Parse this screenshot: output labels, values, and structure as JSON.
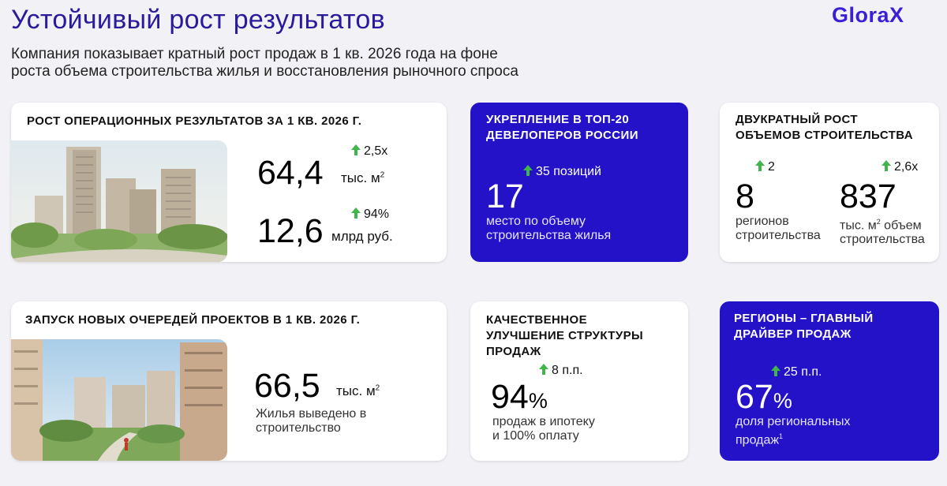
{
  "header": {
    "title": "Устойчивый рост результатов",
    "logo": "GloraX",
    "subtitle_line1": "Компания показывает кратный рост продаж в 1 кв. 2026 года на фоне",
    "subtitle_line2": "роста объема строительства жилья и восстановления рыночного спроса"
  },
  "card1": {
    "title": "РОСТ ОПЕРАЦИОННЫХ РЕЗУЛЬТАТОВ ЗА 1 КВ. 2026 Г.",
    "m1_delta": "2,5х",
    "m1_value": "64,4",
    "m1_unit": "тыс. м",
    "m1_unit_sup": "2",
    "m2_delta": "94%",
    "m2_value": "12,6",
    "m2_unit": "млрд руб."
  },
  "card2": {
    "title_line1": "УКРЕПЛЕНИЕ В ТОП-20",
    "title_line2": "ДЕВЕЛОПЕРОВ РОССИИ",
    "delta": "35 позиций",
    "value": "17",
    "desc_line1": "место по объему",
    "desc_line2": "строительства жилья"
  },
  "card3": {
    "title_line1": "ДВУКРАТНЫЙ РОСТ",
    "title_line2": "ОБЪЕМОВ СТРОИТЕЛЬСТВА",
    "left_delta": "2",
    "left_value": "8",
    "left_desc_line1": "регионов",
    "left_desc_line2": "строительства",
    "right_delta": "2,6х",
    "right_value": "837",
    "right_desc_line1_a": "тыс. м",
    "right_desc_line1_sup": "2",
    "right_desc_line1_b": " объем",
    "right_desc_line2": "строительства"
  },
  "card4": {
    "title": "ЗАПУСК НОВЫХ ОЧЕРЕДЕЙ ПРОЕКТОВ В 1 КВ. 2026 Г.",
    "value": "66,5",
    "unit": "тыс. м",
    "unit_sup": "2",
    "desc_line1": "Жилья выведено в",
    "desc_line2": "строительство"
  },
  "card5": {
    "title_line1": "КАЧЕСТВЕННОЕ",
    "title_line2": "УЛУЧШЕНИЕ СТРУКТУРЫ",
    "title_line3": "ПРОДАЖ",
    "delta": "8 п.п.",
    "value": "94",
    "value_suffix": "%",
    "desc_line1": "продаж в ипотеку",
    "desc_line2": "и 100% оплату"
  },
  "card6": {
    "title_line1": "РЕГИОНЫ – ГЛАВНЫЙ",
    "title_line2": "ДРАЙВЕР ПРОДАЖ",
    "delta": "25 п.п.",
    "value": "67",
    "value_suffix": "%",
    "desc_line1": "доля региональных",
    "desc_line2": "продаж",
    "desc_sup": "1"
  },
  "colors": {
    "brand_blue": "#2412c9",
    "title_blue": "#2a1a9c",
    "arrow_green": "#3fb54a"
  },
  "icons": {
    "delta": "arrow-up-icon"
  }
}
